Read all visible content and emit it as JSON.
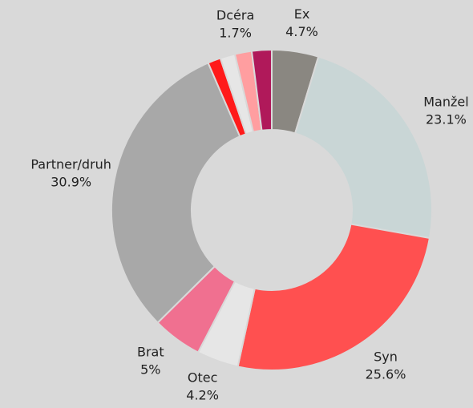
{
  "chart_data": {
    "type": "donut",
    "categories": [
      "Ex",
      "Manžel",
      "Syn",
      "Otec",
      "Brat",
      "Partner/druh",
      null,
      null,
      "Dcéra",
      null
    ],
    "values": [
      4.7,
      23.1,
      25.6,
      4.2,
      5,
      30.9,
      1.3,
      1.5,
      1.7,
      2.0
    ],
    "value_labels": [
      "4.7%",
      "23.1%",
      "25.6%",
      "4.2%",
      "5%",
      "30.9%",
      null,
      null,
      "1.7%",
      null
    ],
    "colors": [
      "#8a8781",
      "#c9d6d6",
      "#ff5050",
      "#e6e6e6",
      "#f07090",
      "#a8a8a8",
      "#ff1a1a",
      "#e6e6e6",
      "#ff9ea0",
      "#b0195a"
    ]
  }
}
